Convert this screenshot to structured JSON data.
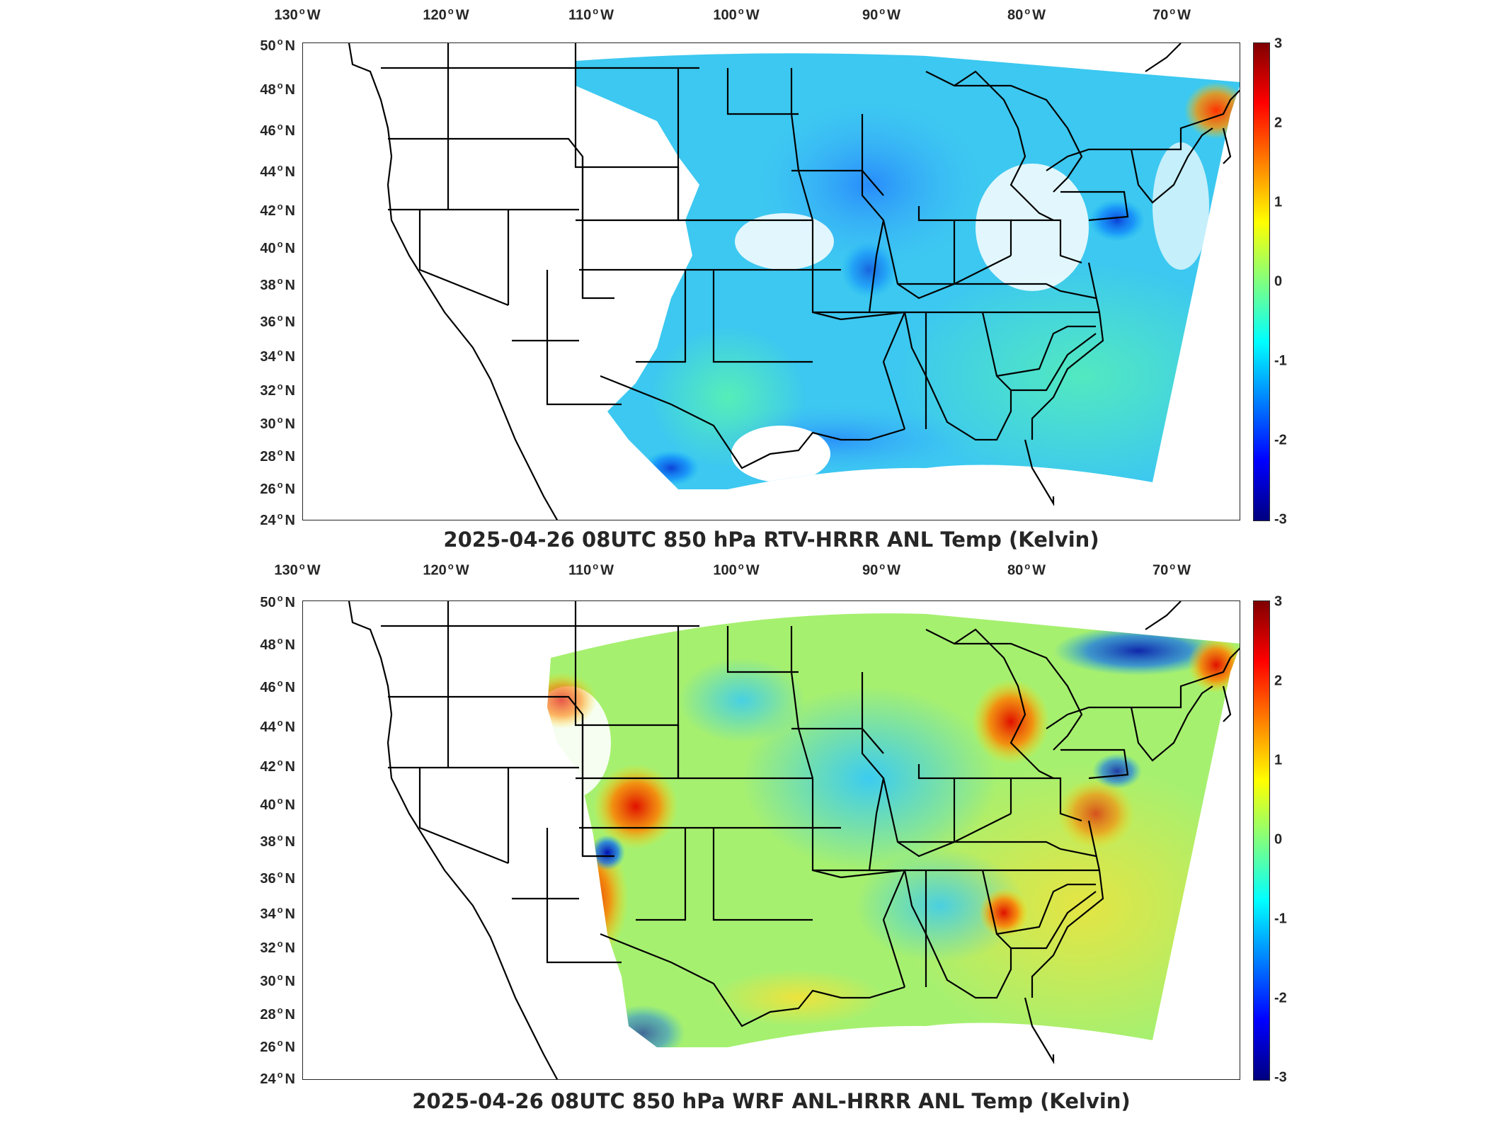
{
  "colorbar": {
    "ticks": [
      "3",
      "2",
      "1",
      "0",
      "-1",
      "-2",
      "-3"
    ],
    "range": [
      -3,
      3
    ],
    "colormap": "jet"
  },
  "axes": {
    "lon_labels": [
      {
        "num": "130",
        "hem": "W"
      },
      {
        "num": "120",
        "hem": "W"
      },
      {
        "num": "110",
        "hem": "W"
      },
      {
        "num": "100",
        "hem": "W"
      },
      {
        "num": "90",
        "hem": "W"
      },
      {
        "num": "80",
        "hem": "W"
      },
      {
        "num": "70",
        "hem": "W"
      }
    ],
    "lat_labels": [
      {
        "num": "50",
        "hem": "N"
      },
      {
        "num": "48",
        "hem": "N"
      },
      {
        "num": "46",
        "hem": "N"
      },
      {
        "num": "44",
        "hem": "N"
      },
      {
        "num": "42",
        "hem": "N"
      },
      {
        "num": "40",
        "hem": "N"
      },
      {
        "num": "38",
        "hem": "N"
      },
      {
        "num": "36",
        "hem": "N"
      },
      {
        "num": "34",
        "hem": "N"
      },
      {
        "num": "32",
        "hem": "N"
      },
      {
        "num": "30",
        "hem": "N"
      },
      {
        "num": "28",
        "hem": "N"
      },
      {
        "num": "26",
        "hem": "N"
      },
      {
        "num": "24",
        "hem": "N"
      }
    ]
  },
  "panels": [
    {
      "title": "2025-04-26 08UTC 850 hPa RTV-HRRR ANL Temp (Kelvin)",
      "field": "RTV-HRRR"
    },
    {
      "title": "2025-04-26 08UTC 850 hPa WRF ANL-HRRR ANL Temp (Kelvin)",
      "field": "WRF-HRRR"
    }
  ]
}
